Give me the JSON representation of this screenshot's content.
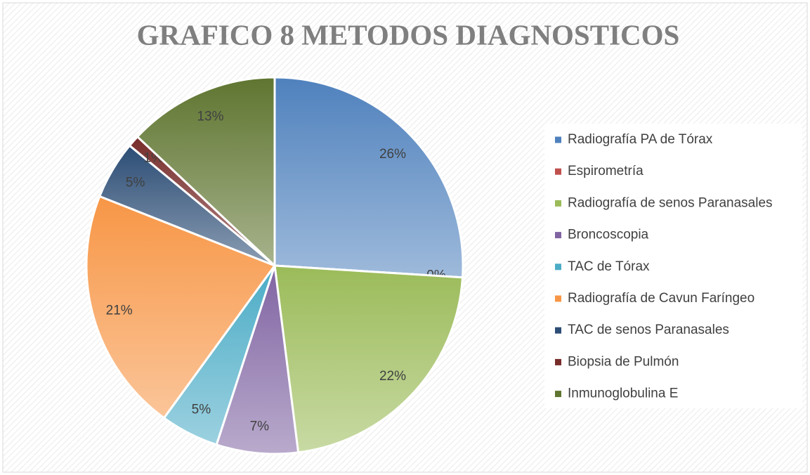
{
  "chart_data": {
    "type": "pie",
    "title": "GRAFICO 8 METODOS DIAGNOSTICOS",
    "categories": [
      "Radiografía PA de Tórax",
      "Espirometría",
      "Radiografía de senos Paranasales",
      "Broncoscopia",
      "TAC de Tórax",
      "Radiografía de Cavun Faríngeo",
      "TAC de senos Paranasales",
      "Biopsia de Pulmón",
      "Inmunoglobulina E"
    ],
    "values": [
      26,
      0,
      22,
      7,
      5,
      21,
      5,
      1,
      13
    ],
    "value_labels": [
      "26%",
      "0%",
      "22%",
      "7%",
      "5%",
      "21%",
      "5%",
      "1%",
      "13%"
    ],
    "colors": [
      "#4f81bd",
      "#c0504d",
      "#9bbb59",
      "#8064a2",
      "#4bacc6",
      "#f79646",
      "#2c4d75",
      "#772c2a",
      "#5f7530"
    ],
    "legend": "right"
  }
}
